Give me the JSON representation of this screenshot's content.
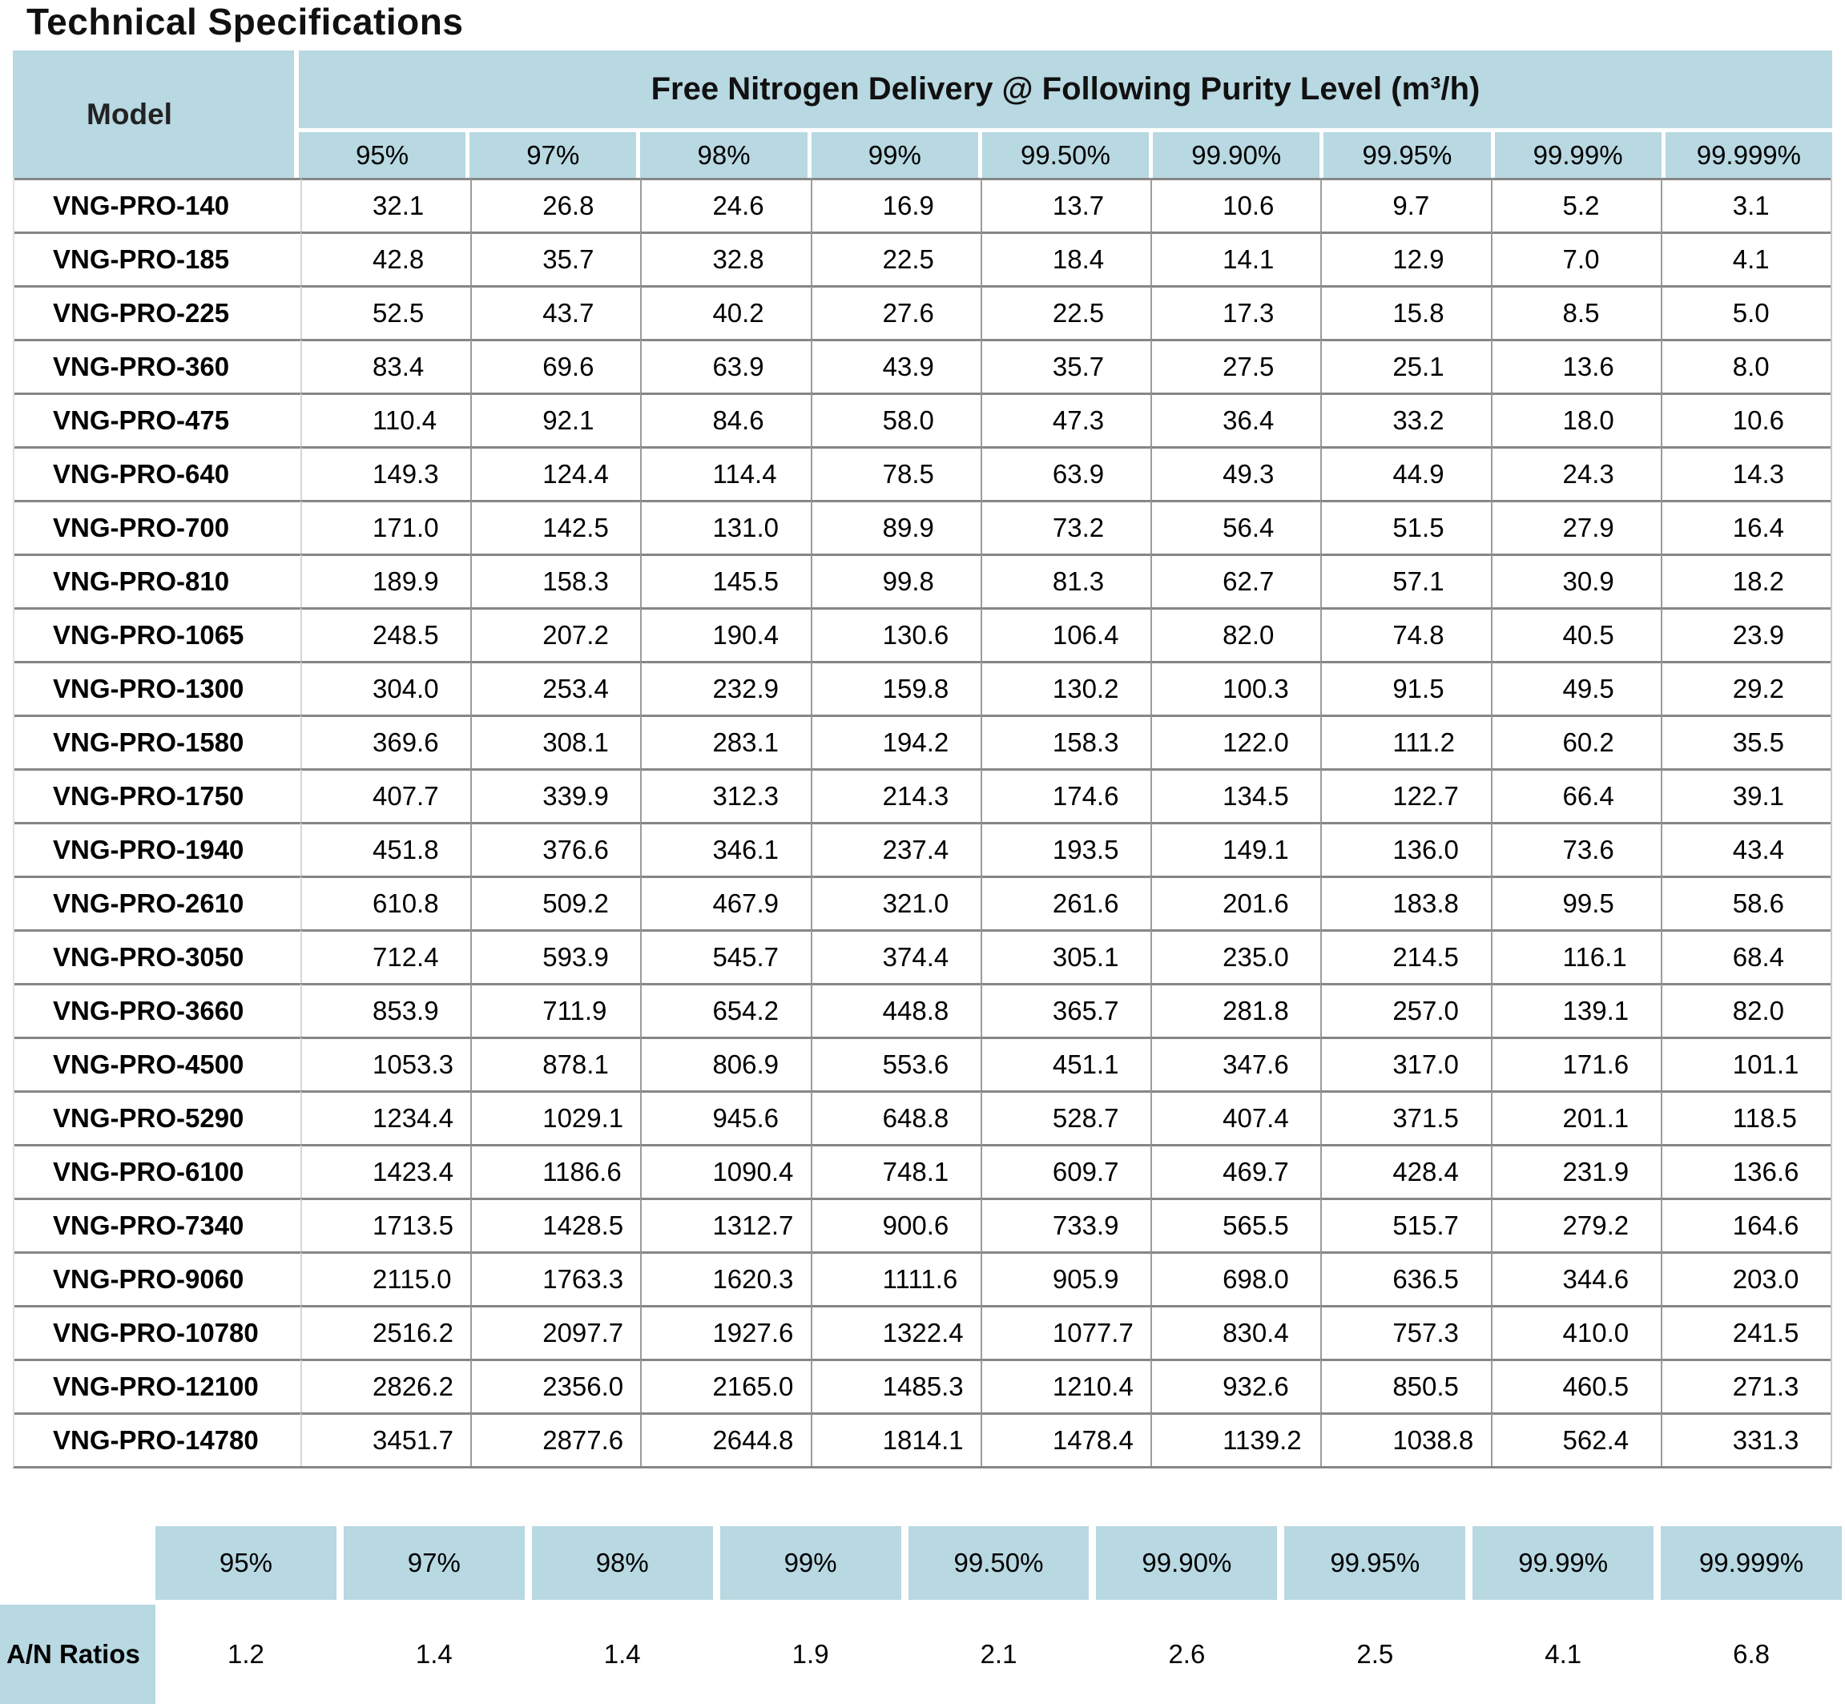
{
  "title": "Technical Specifications",
  "colors": {
    "header_blue": "#b8d8e2",
    "row_line": "#868686",
    "col_line": "#9c9c9c"
  },
  "spec_table": {
    "model_header": "Model",
    "main_header": "Free Nitrogen Delivery @ Following Purity Level (m³/h)",
    "purity_headers": [
      "95%",
      "97%",
      "98%",
      "99%",
      "99.50%",
      "99.90%",
      "99.95%",
      "99.99%",
      "99.999%"
    ],
    "rows": [
      {
        "model": "VNG-PRO-140",
        "values": [
          "32.1",
          "26.8",
          "24.6",
          "16.9",
          "13.7",
          "10.6",
          "9.7",
          "5.2",
          "3.1"
        ]
      },
      {
        "model": "VNG-PRO-185",
        "values": [
          "42.8",
          "35.7",
          "32.8",
          "22.5",
          "18.4",
          "14.1",
          "12.9",
          "7.0",
          "4.1"
        ]
      },
      {
        "model": "VNG-PRO-225",
        "values": [
          "52.5",
          "43.7",
          "40.2",
          "27.6",
          "22.5",
          "17.3",
          "15.8",
          "8.5",
          "5.0"
        ]
      },
      {
        "model": "VNG-PRO-360",
        "values": [
          "83.4",
          "69.6",
          "63.9",
          "43.9",
          "35.7",
          "27.5",
          "25.1",
          "13.6",
          "8.0"
        ]
      },
      {
        "model": "VNG-PRO-475",
        "values": [
          "110.4",
          "92.1",
          "84.6",
          "58.0",
          "47.3",
          "36.4",
          "33.2",
          "18.0",
          "10.6"
        ]
      },
      {
        "model": "VNG-PRO-640",
        "values": [
          "149.3",
          "124.4",
          "114.4",
          "78.5",
          "63.9",
          "49.3",
          "44.9",
          "24.3",
          "14.3"
        ]
      },
      {
        "model": "VNG-PRO-700",
        "values": [
          "171.0",
          "142.5",
          "131.0",
          "89.9",
          "73.2",
          "56.4",
          "51.5",
          "27.9",
          "16.4"
        ]
      },
      {
        "model": "VNG-PRO-810",
        "values": [
          "189.9",
          "158.3",
          "145.5",
          "99.8",
          "81.3",
          "62.7",
          "57.1",
          "30.9",
          "18.2"
        ]
      },
      {
        "model": "VNG-PRO-1065",
        "values": [
          "248.5",
          "207.2",
          "190.4",
          "130.6",
          "106.4",
          "82.0",
          "74.8",
          "40.5",
          "23.9"
        ]
      },
      {
        "model": "VNG-PRO-1300",
        "values": [
          "304.0",
          "253.4",
          "232.9",
          "159.8",
          "130.2",
          "100.3",
          "91.5",
          "49.5",
          "29.2"
        ]
      },
      {
        "model": "VNG-PRO-1580",
        "values": [
          "369.6",
          "308.1",
          "283.1",
          "194.2",
          "158.3",
          "122.0",
          "111.2",
          "60.2",
          "35.5"
        ]
      },
      {
        "model": "VNG-PRO-1750",
        "values": [
          "407.7",
          "339.9",
          "312.3",
          "214.3",
          "174.6",
          "134.5",
          "122.7",
          "66.4",
          "39.1"
        ]
      },
      {
        "model": "VNG-PRO-1940",
        "values": [
          "451.8",
          "376.6",
          "346.1",
          "237.4",
          "193.5",
          "149.1",
          "136.0",
          "73.6",
          "43.4"
        ]
      },
      {
        "model": "VNG-PRO-2610",
        "values": [
          "610.8",
          "509.2",
          "467.9",
          "321.0",
          "261.6",
          "201.6",
          "183.8",
          "99.5",
          "58.6"
        ]
      },
      {
        "model": "VNG-PRO-3050",
        "values": [
          "712.4",
          "593.9",
          "545.7",
          "374.4",
          "305.1",
          "235.0",
          "214.5",
          "116.1",
          "68.4"
        ]
      },
      {
        "model": "VNG-PRO-3660",
        "values": [
          "853.9",
          "711.9",
          "654.2",
          "448.8",
          "365.7",
          "281.8",
          "257.0",
          "139.1",
          "82.0"
        ]
      },
      {
        "model": "VNG-PRO-4500",
        "values": [
          "1053.3",
          "878.1",
          "806.9",
          "553.6",
          "451.1",
          "347.6",
          "317.0",
          "171.6",
          "101.1"
        ]
      },
      {
        "model": "VNG-PRO-5290",
        "values": [
          "1234.4",
          "1029.1",
          "945.6",
          "648.8",
          "528.7",
          "407.4",
          "371.5",
          "201.1",
          "118.5"
        ]
      },
      {
        "model": "VNG-PRO-6100",
        "values": [
          "1423.4",
          "1186.6",
          "1090.4",
          "748.1",
          "609.7",
          "469.7",
          "428.4",
          "231.9",
          "136.6"
        ]
      },
      {
        "model": "VNG-PRO-7340",
        "values": [
          "1713.5",
          "1428.5",
          "1312.7",
          "900.6",
          "733.9",
          "565.5",
          "515.7",
          "279.2",
          "164.6"
        ]
      },
      {
        "model": "VNG-PRO-9060",
        "values": [
          "2115.0",
          "1763.3",
          "1620.3",
          "1111.6",
          "905.9",
          "698.0",
          "636.5",
          "344.6",
          "203.0"
        ]
      },
      {
        "model": "VNG-PRO-10780",
        "values": [
          "2516.2",
          "2097.7",
          "1927.6",
          "1322.4",
          "1077.7",
          "830.4",
          "757.3",
          "410.0",
          "241.5"
        ]
      },
      {
        "model": "VNG-PRO-12100",
        "values": [
          "2826.2",
          "2356.0",
          "2165.0",
          "1485.3",
          "1210.4",
          "932.6",
          "850.5",
          "460.5",
          "271.3"
        ]
      },
      {
        "model": "VNG-PRO-14780",
        "values": [
          "3451.7",
          "2877.6",
          "2644.8",
          "1814.1",
          "1478.4",
          "1139.2",
          "1038.8",
          "562.4",
          "331.3"
        ]
      }
    ]
  },
  "ratio_table": {
    "row_label": "A/N Ratios",
    "purity_headers": [
      "95%",
      "97%",
      "98%",
      "99%",
      "99.50%",
      "99.90%",
      "99.95%",
      "99.99%",
      "99.999%"
    ],
    "values": [
      "1.2",
      "1.4",
      "1.4",
      "1.9",
      "2.1",
      "2.6",
      "2.5",
      "4.1",
      "6.8"
    ]
  }
}
